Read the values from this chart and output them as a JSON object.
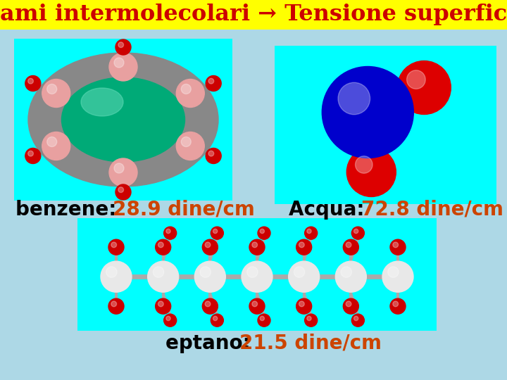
{
  "title": "Legami intermolecolari → Tensione superficiale",
  "title_bg": "#FFFF00",
  "title_color": "#CC0000",
  "bg_color": "#ADD8E6",
  "benzene_label_black": "benzene: ",
  "benzene_label_orange": "28.9 dine/cm",
  "acqua_label_black": "Acqua: ",
  "acqua_label_orange": "72.8 dine/cm",
  "eptano_label_black": "eptano: ",
  "eptano_label_orange": "21.5 dine/cm",
  "label_color_black": "#000000",
  "label_color_orange": "#CC4400",
  "label_fontsize": 20,
  "img_bg": "#00FFFF",
  "gray_ring": "#888888",
  "green_center": "#00AA77",
  "pink_carbon": "#E8A0A0",
  "red_hydrogen": "#CC0000",
  "blue_oxygen": "#0000CC",
  "water_red": "#DD0000",
  "white_carbon": "#E8E8E8"
}
